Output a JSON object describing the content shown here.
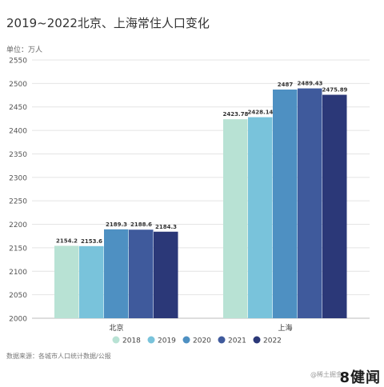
{
  "header": {
    "title": "2019~2022北京、上海常住人口变化",
    "unit": "单位：万人"
  },
  "footer": {
    "source": "数据来源：各城市人口统计数据/公报",
    "watermark": "@稀土掘金",
    "brand": "8健闻"
  },
  "colors": {
    "2018": "#b8e2d4",
    "2019": "#79c3db",
    "2020": "#4e90c2",
    "2021": "#3f5a9c",
    "2022": "#2b3878",
    "grid": "#e4e4e4",
    "axis_text": "#555555"
  },
  "chart_data": {
    "type": "bar",
    "title": "2019~2022北京、上海常住人口变化",
    "ylabel": "单位：万人",
    "ylim": [
      2000,
      2550
    ],
    "yticks": [
      2000,
      2050,
      2100,
      2150,
      2200,
      2250,
      2300,
      2350,
      2400,
      2450,
      2500,
      2550
    ],
    "grid": true,
    "legend_position": "bottom",
    "categories": [
      "北京",
      "上海"
    ],
    "series": [
      {
        "name": "2018",
        "values": [
          2154.2,
          2423.78
        ],
        "labels": [
          "2154.2",
          "2423.78"
        ]
      },
      {
        "name": "2019",
        "values": [
          2153.6,
          2428.14
        ],
        "labels": [
          "2153.6",
          "2428.14"
        ]
      },
      {
        "name": "2020",
        "values": [
          2189.3,
          2487
        ],
        "labels": [
          "2189.3",
          "2487"
        ]
      },
      {
        "name": "2021",
        "values": [
          2188.6,
          2489.43
        ],
        "labels": [
          "2188.6",
          "2489.43"
        ]
      },
      {
        "name": "2022",
        "values": [
          2184.3,
          2475.89
        ],
        "labels": [
          "2184.3",
          "2475.89"
        ]
      }
    ]
  }
}
